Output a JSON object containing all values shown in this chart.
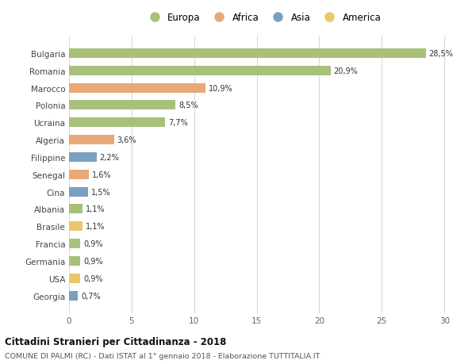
{
  "categories": [
    "Georgia",
    "USA",
    "Germania",
    "Francia",
    "Brasile",
    "Albania",
    "Cina",
    "Senegal",
    "Filippine",
    "Algeria",
    "Ucraina",
    "Polonia",
    "Marocco",
    "Romania",
    "Bulgaria"
  ],
  "values": [
    0.7,
    0.9,
    0.9,
    0.9,
    1.1,
    1.1,
    1.5,
    1.6,
    2.2,
    3.6,
    7.7,
    8.5,
    10.9,
    20.9,
    28.5
  ],
  "labels": [
    "0,7%",
    "0,9%",
    "0,9%",
    "0,9%",
    "1,1%",
    "1,1%",
    "1,5%",
    "1,6%",
    "2,2%",
    "3,6%",
    "7,7%",
    "8,5%",
    "10,9%",
    "20,9%",
    "28,5%"
  ],
  "colors": [
    "#7b9fc0",
    "#e8c86a",
    "#a8c07a",
    "#a8c07a",
    "#e8c86a",
    "#a8c07a",
    "#7b9fc0",
    "#e8a878",
    "#7b9fc0",
    "#e8a878",
    "#a8c07a",
    "#a8c07a",
    "#e8a878",
    "#a8c07a",
    "#a8c07a"
  ],
  "legend_colors": {
    "Europa": "#a8c07a",
    "Africa": "#e8a878",
    "Asia": "#7b9fc0",
    "America": "#e8c86a"
  },
  "xlim": [
    0,
    31
  ],
  "xticks": [
    0,
    5,
    10,
    15,
    20,
    25,
    30
  ],
  "title": "Cittadini Stranieri per Cittadinanza - 2018",
  "subtitle": "COMUNE DI PALMI (RC) - Dati ISTAT al 1° gennaio 2018 - Elaborazione TUTTITALIA.IT",
  "bg_color": "#ffffff",
  "grid_color": "#d8d8d8",
  "bar_height": 0.55
}
